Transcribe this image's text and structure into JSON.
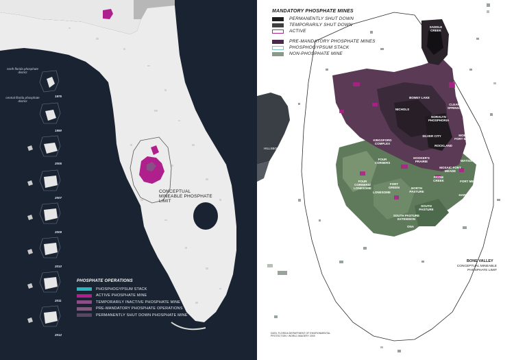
{
  "left_map": {
    "district_labels": {
      "north": "north florida phosphate district",
      "central": "central florida phosphate district"
    },
    "years": [
      "1975",
      "1990",
      "2005",
      "2007",
      "2009",
      "2010",
      "2011",
      "2012"
    ],
    "conceptual_limit_label": "CONCEPTUAL MINEABLE PHOSPHATE LIMIT",
    "legend": {
      "title": "PHOSPHATE OPERATIONS",
      "items": [
        {
          "label": "PHOSPHOGYPSUM STACK",
          "color": "#2bb3c0"
        },
        {
          "label": "ACTIVE PHOSPHATE MINE",
          "color": "#b0208c"
        },
        {
          "label": "TEMPORARILY INACTIVE PHOSPHATE MINE",
          "color": "#8a4f86"
        },
        {
          "label": "PRE-MANDATORY PHOSPHATE OPERATIONS",
          "color": "#7d5a7e"
        },
        {
          "label": "PERMANENTLY SHUT DOWN PHOSPHATE MINE",
          "color": "#5a4660"
        }
      ]
    }
  },
  "right_map": {
    "legend": {
      "title": "MANDATORY PHOSPHATE MINES",
      "group1": [
        {
          "label": "PERMANENTLY SHUT DOWN",
          "color": "#1e1e1e",
          "style": "fill"
        },
        {
          "label": "TEMPORARILY SHUT DOWN",
          "color": "#3f3f3f",
          "style": "fill"
        },
        {
          "label": "ACTIVE",
          "color": "#b0208c",
          "style": "outline"
        }
      ],
      "group2": [
        {
          "label": "PRE-MANDATORY PHOSPHATE MINES",
          "color": "#4a2a4a",
          "style": "fill"
        },
        {
          "label": "PHOSPHOGYPSUM STACK",
          "color": "#6fc6d0",
          "style": "outline"
        },
        {
          "label": "NON-PHOSPHATE MINE",
          "color": "#8a9a8a",
          "style": "fill"
        }
      ]
    },
    "place_labels": {
      "hillsborough": "HILLSBOROUGH BAY",
      "bone_valley": "BONE VALLEY",
      "conceptual_limit": "CONCEPTUAL MINEABLE PHOSPHATE LIMIT"
    },
    "mine_labels": [
      "SADDLE CREEK",
      "BONNY LAKE",
      "NICHOLS",
      "NORALYN PHOSPHORIA",
      "CLEAR SPRINGS",
      "KINGSFORD COMPLEX",
      "SILVER CITY",
      "ROCKLAND",
      "MOBILE FORT MEADE",
      "HOOKER'S PRAIRIE",
      "WATSON MINE",
      "PAYNE CREEK",
      "FORT GREEN",
      "FOUR CORNERS",
      "SOUTH PASTURE",
      "SOUTH PASTURE EXTENSION",
      "ONA",
      "MOSAIC FORT MEADE",
      "FORT MEADE",
      "LONESOME",
      "NORTH PASTURE",
      "FOUR CORNERS/ LONESOME",
      "HARDEE",
      "HORSE CREEK"
    ],
    "credit": "DATA: FLORIDA DEPARTMENT OF ENVIRONMENTAL PROTECTION / WORLD IMAGERY 2009"
  }
}
